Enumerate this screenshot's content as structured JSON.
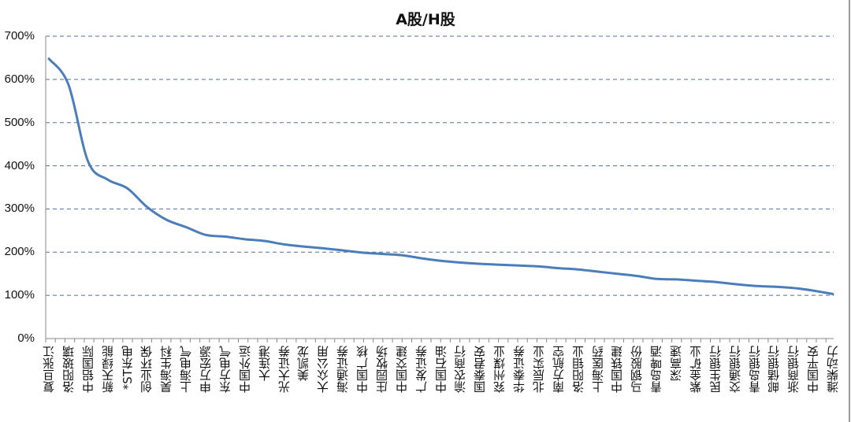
{
  "chart_data": {
    "type": "line",
    "title": "A股/H股",
    "xlabel": "",
    "ylabel": "",
    "ylim": [
      0,
      700
    ],
    "yticks": [
      "0%",
      "100%",
      "200%",
      "300%",
      "400%",
      "500%",
      "600%",
      "700%"
    ],
    "grid": "horizontal dashed",
    "legend": "none",
    "line_color": "#4a7ebb",
    "grid_color": "#4a6fa5",
    "categories": [
      "复旦张江",
      "洛阳玻璃",
      "中铝国际",
      "新天绿能",
      "*ST东电",
      "创业环保",
      "昊海生科",
      "上海电气",
      "申万宏源",
      "东方电气",
      "中国外运",
      "大连港",
      "光大证券",
      "美凯龙",
      "大众公用",
      "海通证券",
      "中国广核",
      "庄园牧场",
      "中国交建",
      "广发证券",
      "中国石油",
      "渝农商行",
      "国泰君安",
      "兖州煤业",
      "华泰证券",
      "北辰实业",
      "南方航空",
      "洛阳钼业",
      "上海医药",
      "中国铁建",
      "马钢股份",
      "青岛啤酒",
      "深高速",
      "紫金矿业",
      "民生银行",
      "交通银行",
      "青岛银行",
      "邮储银行",
      "浙商银行",
      "中国平安",
      "潍柴动力"
    ],
    "series": [
      {
        "name": "A股/H股",
        "values": [
          648,
          588,
          410,
          368,
          348,
          305,
          275,
          258,
          240,
          236,
          230,
          226,
          218,
          213,
          209,
          204,
          199,
          196,
          193,
          186,
          180,
          176,
          173,
          171,
          169,
          167,
          163,
          160,
          155,
          150,
          145,
          138,
          137,
          134,
          131,
          126,
          122,
          120,
          117,
          111,
          103
        ]
      }
    ],
    "note": "Labels shown for every other category; ~82 underlying data points, values at labeled categories estimated from gridlines."
  },
  "title": "A股/H股"
}
